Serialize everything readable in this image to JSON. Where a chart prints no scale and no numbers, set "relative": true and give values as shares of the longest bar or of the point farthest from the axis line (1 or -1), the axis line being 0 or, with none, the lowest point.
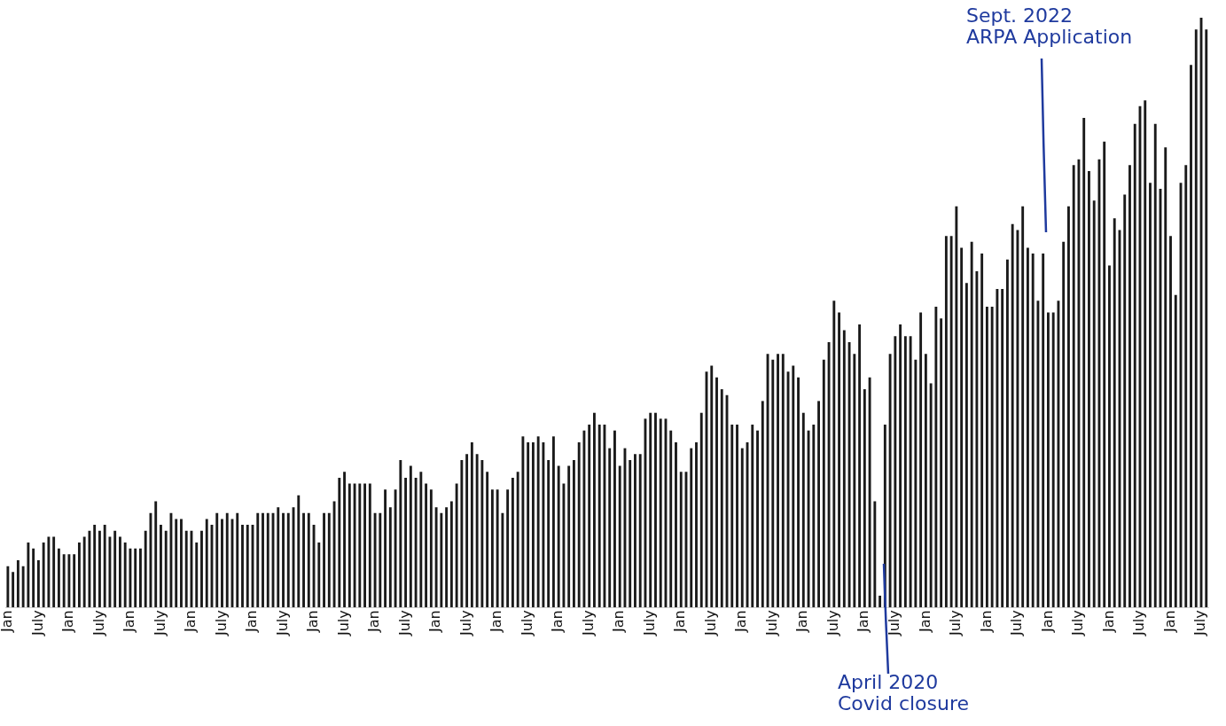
{
  "chart_data": {
    "type": "bar",
    "relative": true,
    "color": "#1a1a1a",
    "categories": [
      "Jan",
      null,
      null,
      null,
      null,
      null,
      "July",
      null,
      null,
      null,
      null,
      null,
      "Jan",
      null,
      null,
      null,
      null,
      null,
      "July",
      null,
      null,
      null,
      null,
      null,
      "Jan",
      null,
      null,
      null,
      null,
      null,
      "July",
      null,
      null,
      null,
      null,
      null,
      "Jan",
      null,
      null,
      null,
      null,
      null,
      "July",
      null,
      null,
      null,
      null,
      null,
      "Jan",
      null,
      null,
      null,
      null,
      null,
      "July",
      null,
      null,
      null,
      null,
      null,
      "Jan",
      null,
      null,
      null,
      null,
      null,
      "July",
      null,
      null,
      null,
      null,
      null,
      "Jan",
      null,
      null,
      null,
      null,
      null,
      "July",
      null,
      null,
      null,
      null,
      null,
      "Jan",
      null,
      null,
      null,
      null,
      null,
      "July",
      null,
      null,
      null,
      null,
      null,
      "Jan",
      null,
      null,
      null,
      null,
      null,
      "July",
      null,
      null,
      null,
      null,
      null,
      "Jan",
      null,
      null,
      null,
      null,
      null,
      "July",
      null,
      null,
      null,
      null,
      null,
      "Jan",
      null,
      null,
      null,
      null,
      null,
      "July",
      null,
      null,
      null,
      null,
      null,
      "Jan",
      null,
      null,
      null,
      null,
      null,
      "July",
      null,
      null,
      null,
      null,
      null,
      "Jan",
      null,
      null,
      null,
      null,
      null,
      "July",
      null,
      null,
      null,
      null,
      null,
      "Jan",
      null,
      null,
      null,
      null,
      null,
      "July",
      null,
      null,
      null,
      null,
      null,
      "Jan",
      null,
      null,
      null,
      null,
      null,
      "July",
      null,
      null,
      null,
      null,
      null,
      "Jan",
      null,
      null,
      null,
      null,
      null,
      "July",
      null,
      null,
      null,
      null,
      null,
      "Jan",
      null,
      null,
      null,
      null,
      null,
      "July",
      null,
      null,
      null,
      null,
      null,
      "Jan",
      null,
      null,
      null,
      null,
      null,
      "July",
      null,
      null,
      null,
      null,
      null,
      "Jan",
      null,
      null,
      null,
      null,
      null,
      "July",
      null,
      null,
      null,
      null,
      null,
      "Jan",
      null,
      null,
      null,
      null,
      null,
      "July",
      null
    ],
    "values": [
      0.07,
      0.06,
      0.08,
      0.07,
      0.11,
      0.1,
      0.08,
      0.11,
      0.12,
      0.12,
      0.1,
      0.09,
      0.09,
      0.09,
      0.11,
      0.12,
      0.13,
      0.14,
      0.13,
      0.14,
      0.12,
      0.13,
      0.12,
      0.11,
      0.1,
      0.1,
      0.1,
      0.13,
      0.16,
      0.18,
      0.14,
      0.13,
      0.16,
      0.15,
      0.15,
      0.13,
      0.13,
      0.11,
      0.13,
      0.15,
      0.14,
      0.16,
      0.15,
      0.16,
      0.15,
      0.16,
      0.14,
      0.14,
      0.14,
      0.16,
      0.16,
      0.16,
      0.16,
      0.17,
      0.16,
      0.16,
      0.17,
      0.19,
      0.16,
      0.16,
      0.14,
      0.11,
      0.16,
      0.16,
      0.18,
      0.22,
      0.23,
      0.21,
      0.21,
      0.21,
      0.21,
      0.21,
      0.16,
      0.16,
      0.2,
      0.17,
      0.2,
      0.25,
      0.22,
      0.24,
      0.22,
      0.23,
      0.21,
      0.2,
      0.17,
      0.16,
      0.17,
      0.18,
      0.21,
      0.25,
      0.26,
      0.28,
      0.26,
      0.25,
      0.23,
      0.2,
      0.2,
      0.16,
      0.2,
      0.22,
      0.23,
      0.29,
      0.28,
      0.28,
      0.29,
      0.28,
      0.25,
      0.29,
      0.24,
      0.21,
      0.24,
      0.25,
      0.28,
      0.3,
      0.31,
      0.33,
      0.31,
      0.31,
      0.27,
      0.3,
      0.24,
      0.27,
      0.25,
      0.26,
      0.26,
      0.32,
      0.33,
      0.33,
      0.32,
      0.32,
      0.3,
      0.28,
      0.23,
      0.23,
      0.27,
      0.28,
      0.33,
      0.4,
      0.41,
      0.39,
      0.37,
      0.36,
      0.31,
      0.31,
      0.27,
      0.28,
      0.31,
      0.3,
      0.35,
      0.43,
      0.42,
      0.43,
      0.43,
      0.4,
      0.41,
      0.39,
      0.33,
      0.3,
      0.31,
      0.35,
      0.42,
      0.45,
      0.52,
      0.5,
      0.47,
      0.45,
      0.43,
      0.48,
      0.37,
      0.39,
      0.18,
      0.02,
      0.31,
      0.43,
      0.46,
      0.48,
      0.46,
      0.46,
      0.42,
      0.5,
      0.43,
      0.38,
      0.51,
      0.49,
      0.63,
      0.63,
      0.68,
      0.61,
      0.55,
      0.62,
      0.57,
      0.6,
      0.51,
      0.51,
      0.54,
      0.54,
      0.59,
      0.65,
      0.64,
      0.68,
      0.61,
      0.6,
      0.52,
      0.6,
      0.5,
      0.5,
      0.52,
      0.62,
      0.68,
      0.75,
      0.76,
      0.83,
      0.74,
      0.69,
      0.76,
      0.79,
      0.58,
      0.66,
      0.64,
      0.7,
      0.75,
      0.82,
      0.85,
      0.86,
      0.72,
      0.82,
      0.71,
      0.78,
      0.63,
      0.53,
      0.72,
      0.75,
      0.92,
      0.98,
      1,
      0.98
    ],
    "annotations": [
      "Sept. 2022\nARPA Application",
      "April 2020\nCovid closure"
    ]
  }
}
